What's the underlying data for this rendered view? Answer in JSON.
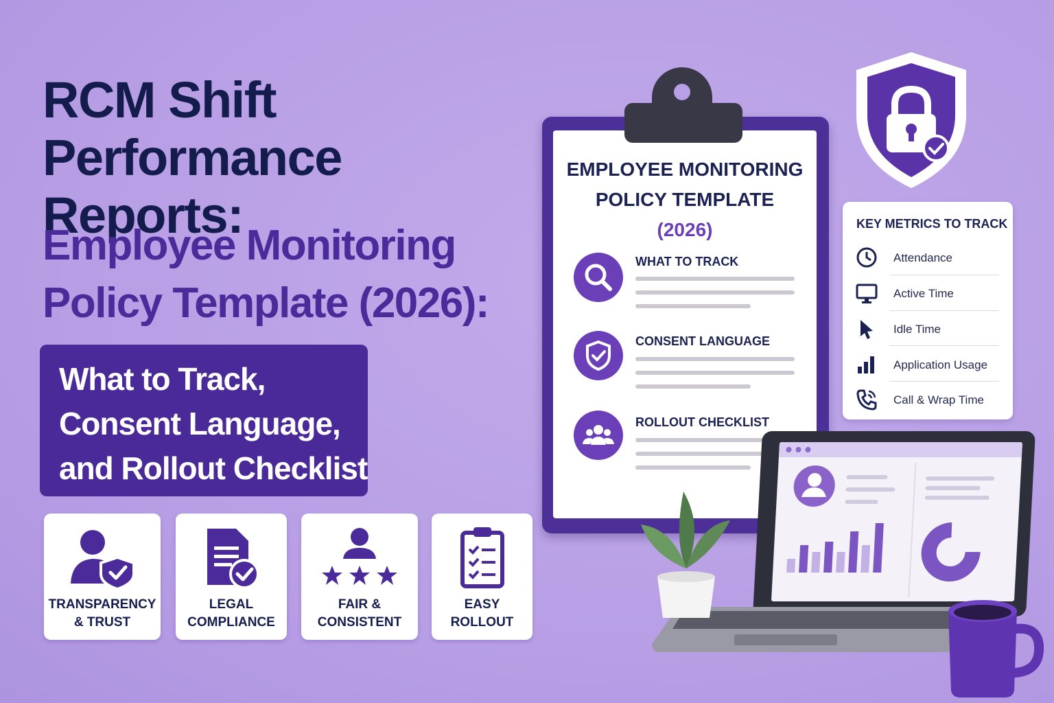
{
  "headline": {
    "line1": "RCM Shift",
    "line2": "Performance Reports:",
    "line3": "Employee Monitoring",
    "line4": "Policy Template (2026):"
  },
  "subtitle": {
    "line1": "What to Track,",
    "line2": "Consent Language,",
    "line3": "and Rollout Checklist"
  },
  "features": [
    {
      "line1": "TRANSPARENCY",
      "line2": "& TRUST",
      "icon": "person-shield-icon"
    },
    {
      "line1": "LEGAL",
      "line2": "COMPLIANCE",
      "icon": "document-check-icon"
    },
    {
      "line1": "FAIR &",
      "line2": "CONSISTENT",
      "icon": "person-stars-icon"
    },
    {
      "line1": "EASY",
      "line2": "ROLLOUT",
      "icon": "clipboard-checklist-icon"
    }
  ],
  "clipboard": {
    "title_line1": "EMPLOYEE MONITORING",
    "title_line2": "POLICY TEMPLATE",
    "year": "(2026)",
    "sections": [
      {
        "title": "WHAT TO TRACK",
        "icon": "magnifier-icon"
      },
      {
        "title": "CONSENT LANGUAGE",
        "icon": "shield-check-icon"
      },
      {
        "title": "ROLLOUT CHECKLIST",
        "icon": "team-icon"
      }
    ]
  },
  "metrics": {
    "title": "KEY METRICS TO TRACK",
    "items": [
      {
        "label": "Attendance",
        "icon": "clock-icon"
      },
      {
        "label": "Active Time",
        "icon": "monitor-icon"
      },
      {
        "label": "Idle Time",
        "icon": "cursor-icon"
      },
      {
        "label": "Application Usage",
        "icon": "bar-chart-icon"
      },
      {
        "label": "Call & Wrap Time",
        "icon": "phone-icon"
      }
    ]
  },
  "colors": {
    "background": "#b9a0e6",
    "navy": "#141c4d",
    "purple": "#4b2a99",
    "accent": "#6a3fb8"
  }
}
